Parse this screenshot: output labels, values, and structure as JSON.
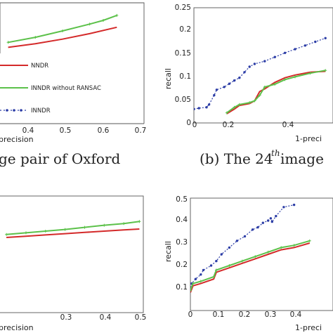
{
  "captions": {
    "a_fragment": "ge pair of Oxford",
    "b_prefix": "(b) The 24",
    "b_sup": "th",
    "b_suffix": " image"
  },
  "chart_data": [
    {
      "id": "tl",
      "type": "line",
      "xlabel": "precision",
      "ylabel": "",
      "xticks": [
        "0.4",
        "0.5",
        "0.6",
        "0.7"
      ],
      "yticks": [],
      "legend": [
        "NNDR",
        "INNDR without RANSAC",
        "INNDR"
      ],
      "series": [
        {
          "color": "#d42a2a",
          "marker": "none",
          "points": [
            [
              0.2,
              0.04
            ],
            [
              0.3,
              0.12
            ],
            [
              0.4,
              0.22
            ],
            [
              0.5,
              0.34
            ],
            [
              0.6,
              0.48
            ]
          ]
        },
        {
          "color": "#5cc14a",
          "marker": "plus",
          "points": [
            [
              0.2,
              0.15
            ],
            [
              0.3,
              0.26
            ],
            [
              0.4,
              0.4
            ],
            [
              0.5,
              0.55
            ],
            [
              0.55,
              0.63
            ],
            [
              0.6,
              0.74
            ]
          ]
        }
      ]
    },
    {
      "id": "tr",
      "type": "line",
      "xlabel": "1-preci",
      "ylabel": "recall",
      "xticks": [
        "0",
        "0.2",
        "0.4"
      ],
      "yticks": [
        "0",
        "0.05",
        "0.1",
        "0.15",
        "0.2",
        "0.25"
      ],
      "series": [
        {
          "color": "#2c3da6",
          "marker": "dot",
          "points": [
            [
              0,
              0.03
            ],
            [
              0.02,
              0.032
            ],
            [
              0.05,
              0.034
            ],
            [
              0.06,
              0.04
            ],
            [
              0.08,
              0.06
            ],
            [
              0.09,
              0.072
            ],
            [
              0.12,
              0.078
            ],
            [
              0.14,
              0.085
            ],
            [
              0.16,
              0.092
            ],
            [
              0.18,
              0.098
            ],
            [
              0.2,
              0.11
            ],
            [
              0.22,
              0.122
            ],
            [
              0.24,
              0.128
            ],
            [
              0.28,
              0.134
            ],
            [
              0.32,
              0.143
            ],
            [
              0.36,
              0.152
            ],
            [
              0.4,
              0.16
            ],
            [
              0.44,
              0.168
            ],
            [
              0.48,
              0.176
            ],
            [
              0.52,
              0.184
            ]
          ]
        },
        {
          "color": "#d42a2a",
          "marker": "none",
          "points": [
            [
              0.13,
              0.02
            ],
            [
              0.16,
              0.03
            ],
            [
              0.18,
              0.038
            ],
            [
              0.22,
              0.042
            ],
            [
              0.24,
              0.048
            ],
            [
              0.26,
              0.068
            ],
            [
              0.28,
              0.074
            ],
            [
              0.32,
              0.088
            ],
            [
              0.36,
              0.098
            ],
            [
              0.4,
              0.104
            ],
            [
              0.46,
              0.11
            ],
            [
              0.52,
              0.112
            ]
          ]
        },
        {
          "color": "#5cc14a",
          "marker": "plus",
          "points": [
            [
              0.13,
              0.022
            ],
            [
              0.16,
              0.034
            ],
            [
              0.18,
              0.04
            ],
            [
              0.22,
              0.044
            ],
            [
              0.24,
              0.048
            ],
            [
              0.26,
              0.06
            ],
            [
              0.28,
              0.078
            ],
            [
              0.32,
              0.084
            ],
            [
              0.36,
              0.094
            ],
            [
              0.4,
              0.1
            ],
            [
              0.46,
              0.108
            ],
            [
              0.52,
              0.114
            ]
          ]
        }
      ]
    },
    {
      "id": "bl",
      "type": "line",
      "xlabel": "precision",
      "ylabel": "",
      "xticks": [
        "0.3",
        "0.4",
        "0.5"
      ],
      "yticks": [],
      "series": [
        {
          "color": "#d42a2a",
          "marker": "none",
          "points": [
            [
              0.15,
              0.2
            ],
            [
              0.2,
              0.23
            ],
            [
              0.25,
              0.26
            ],
            [
              0.3,
              0.29
            ],
            [
              0.35,
              0.32
            ],
            [
              0.4,
              0.35
            ],
            [
              0.45,
              0.38
            ],
            [
              0.49,
              0.4
            ]
          ]
        },
        {
          "color": "#5cc14a",
          "marker": "plus",
          "points": [
            [
              0.15,
              0.27
            ],
            [
              0.2,
              0.31
            ],
            [
              0.25,
              0.35
            ],
            [
              0.3,
              0.39
            ],
            [
              0.35,
              0.44
            ],
            [
              0.4,
              0.49
            ],
            [
              0.45,
              0.53
            ],
            [
              0.49,
              0.58
            ]
          ]
        }
      ]
    },
    {
      "id": "br",
      "type": "line",
      "xlabel": "1-preci",
      "ylabel": "recall",
      "xticks": [
        "0",
        "0.1",
        "0.2",
        "0.3",
        "0.4"
      ],
      "yticks": [
        "0.1",
        "0.2",
        "0.3",
        "0.4",
        "0.5"
      ],
      "series": [
        {
          "color": "#2c3da6",
          "marker": "dot",
          "points": [
            [
              0,
              0.09
            ],
            [
              0.005,
              0.12
            ],
            [
              0.02,
              0.14
            ],
            [
              0.04,
              0.16
            ],
            [
              0.05,
              0.18
            ],
            [
              0.08,
              0.2
            ],
            [
              0.1,
              0.22
            ],
            [
              0.12,
              0.25
            ],
            [
              0.15,
              0.28
            ],
            [
              0.18,
              0.31
            ],
            [
              0.21,
              0.33
            ],
            [
              0.24,
              0.36
            ],
            [
              0.26,
              0.37
            ],
            [
              0.28,
              0.39
            ],
            [
              0.3,
              0.4
            ],
            [
              0.31,
              0.41
            ],
            [
              0.315,
              0.395
            ],
            [
              0.33,
              0.42
            ],
            [
              0.36,
              0.46
            ],
            [
              0.4,
              0.47
            ]
          ]
        },
        {
          "color": "#d42a2a",
          "marker": "none",
          "points": [
            [
              0,
              0.08
            ],
            [
              0.01,
              0.11
            ],
            [
              0.04,
              0.12
            ],
            [
              0.09,
              0.14
            ],
            [
              0.1,
              0.17
            ],
            [
              0.15,
              0.19
            ],
            [
              0.2,
              0.21
            ],
            [
              0.25,
              0.23
            ],
            [
              0.3,
              0.25
            ],
            [
              0.35,
              0.27
            ],
            [
              0.4,
              0.28
            ],
            [
              0.46,
              0.3
            ]
          ]
        },
        {
          "color": "#5cc14a",
          "marker": "plus",
          "points": [
            [
              0,
              0.09
            ],
            [
              0.01,
              0.12
            ],
            [
              0.04,
              0.13
            ],
            [
              0.09,
              0.15
            ],
            [
              0.1,
              0.18
            ],
            [
              0.15,
              0.2
            ],
            [
              0.2,
              0.22
            ],
            [
              0.25,
              0.24
            ],
            [
              0.3,
              0.26
            ],
            [
              0.35,
              0.28
            ],
            [
              0.4,
              0.29
            ],
            [
              0.46,
              0.31
            ]
          ]
        }
      ]
    }
  ]
}
